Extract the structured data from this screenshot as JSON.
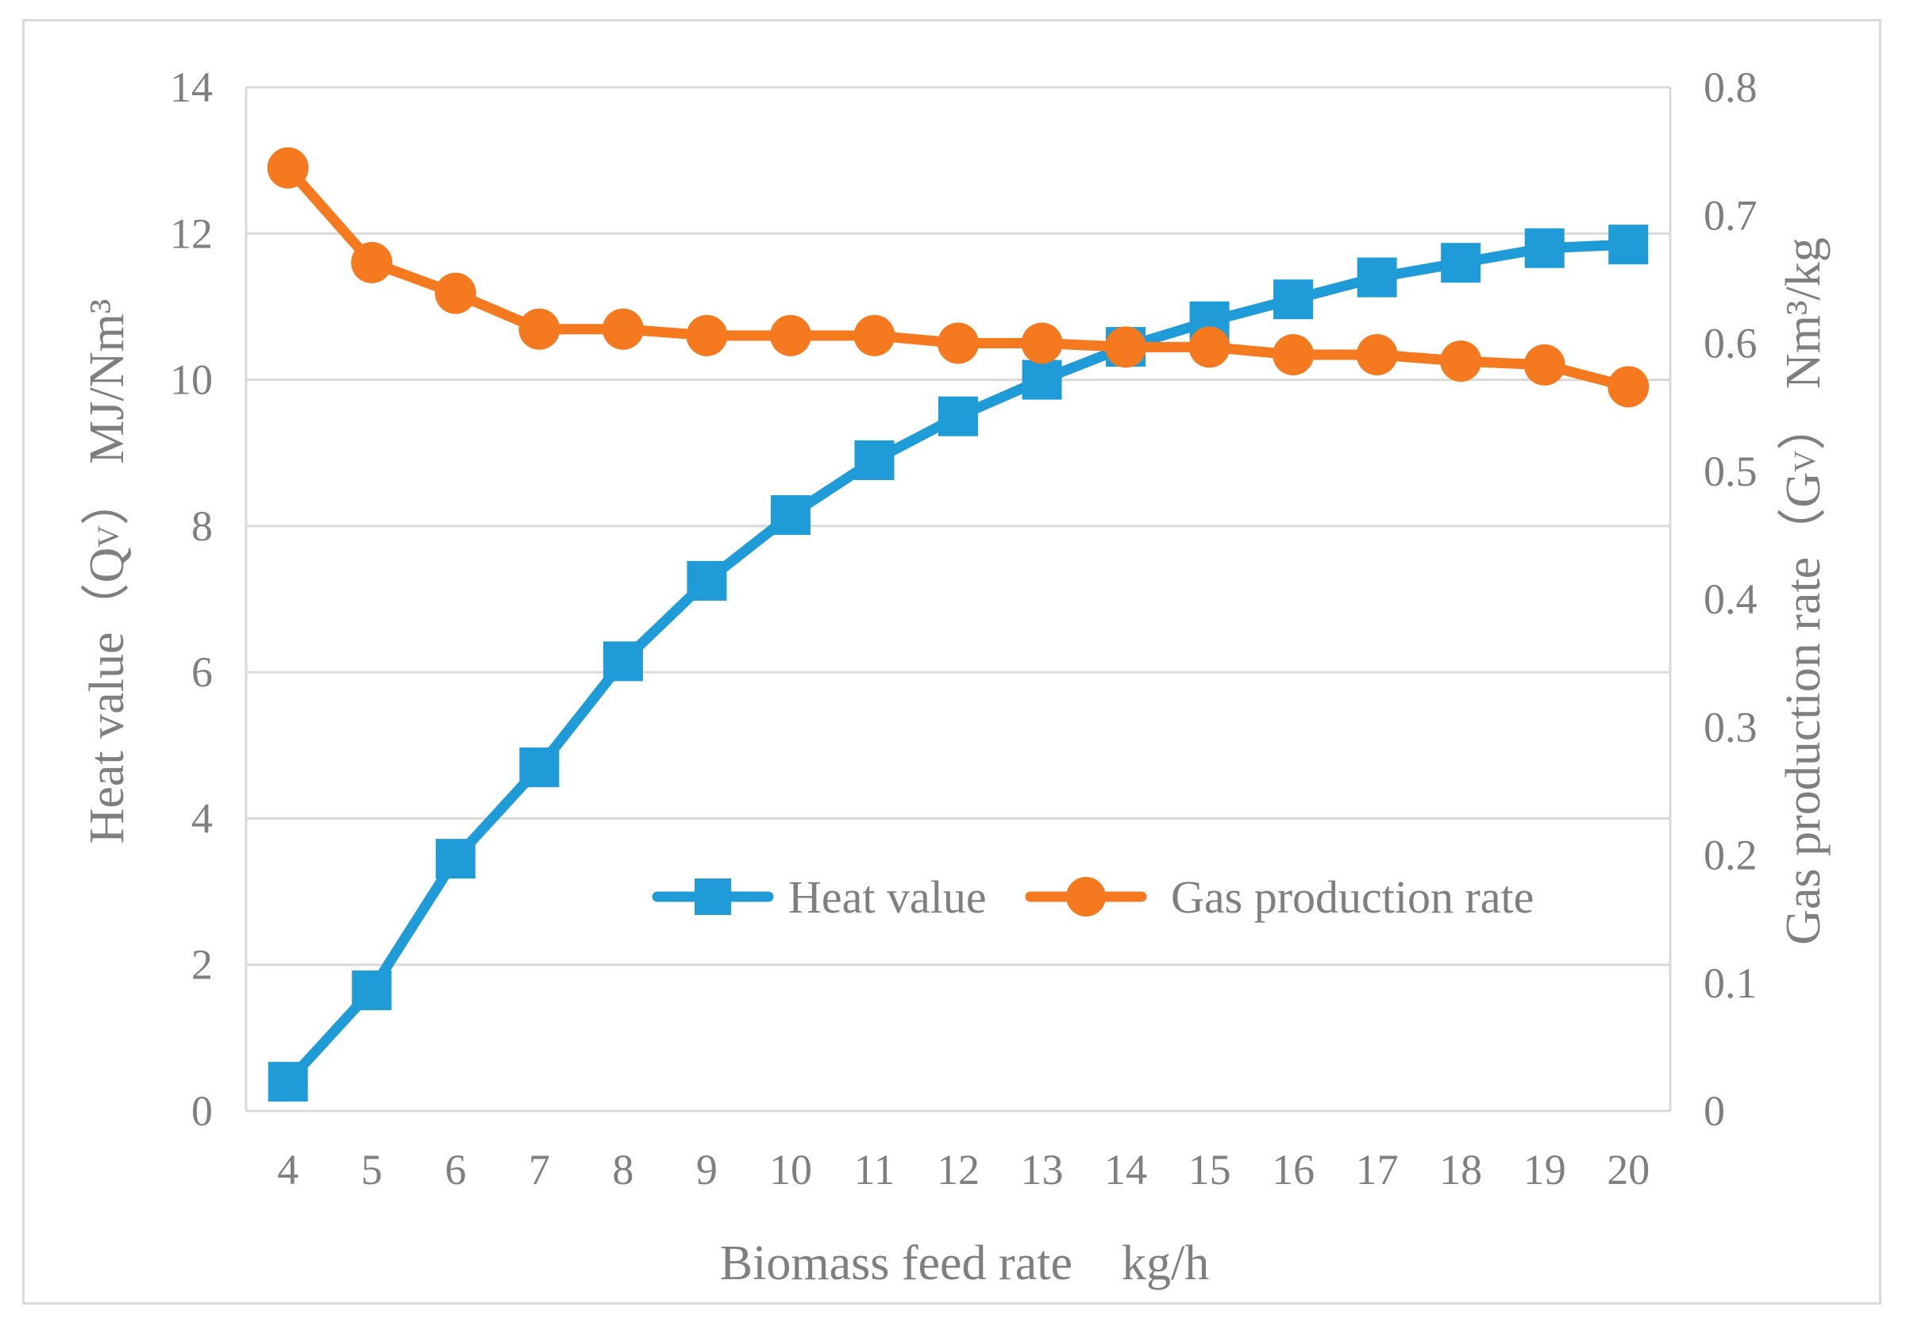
{
  "chart_data": {
    "type": "line",
    "title": "",
    "categories": [
      4,
      5,
      6,
      7,
      8,
      9,
      10,
      11,
      12,
      13,
      14,
      15,
      16,
      17,
      18,
      19,
      20
    ],
    "xlabel": "Biomass feed rate  kg/h",
    "ylabel": {
      "main": "Heat value（Q",
      "sub": "V",
      "tail": "） MJ/Nm³"
    },
    "y2label": {
      "main": "Gas production rate（G",
      "sub": "V",
      "tail": "） Nm³/kg"
    },
    "ylim": [
      0,
      14
    ],
    "y_ticks": [
      0,
      2,
      4,
      6,
      8,
      10,
      12,
      14
    ],
    "y2lim": [
      0,
      0.8
    ],
    "y2_ticks": [
      "0",
      "0.1",
      "0.2",
      "0.3",
      "0.4",
      "0.5",
      "0.6",
      "0.7",
      "0.8"
    ],
    "grid": true,
    "legend_position": "center-right",
    "series": [
      {
        "name": "Heat value",
        "axis": "left",
        "marker": "square",
        "color": "#1f9bd7",
        "values": [
          0.4,
          1.65,
          3.45,
          4.7,
          6.15,
          7.25,
          8.15,
          8.9,
          9.5,
          10.0,
          10.45,
          10.8,
          11.1,
          11.4,
          11.6,
          11.8,
          11.85
        ]
      },
      {
        "name": "Gas production rate",
        "axis": "right",
        "marker": "circle",
        "color": "#f5791f",
        "values": [
          0.737,
          0.663,
          0.639,
          0.611,
          0.611,
          0.606,
          0.606,
          0.606,
          0.6,
          0.6,
          0.597,
          0.597,
          0.591,
          0.591,
          0.586,
          0.583,
          0.566
        ]
      }
    ]
  }
}
